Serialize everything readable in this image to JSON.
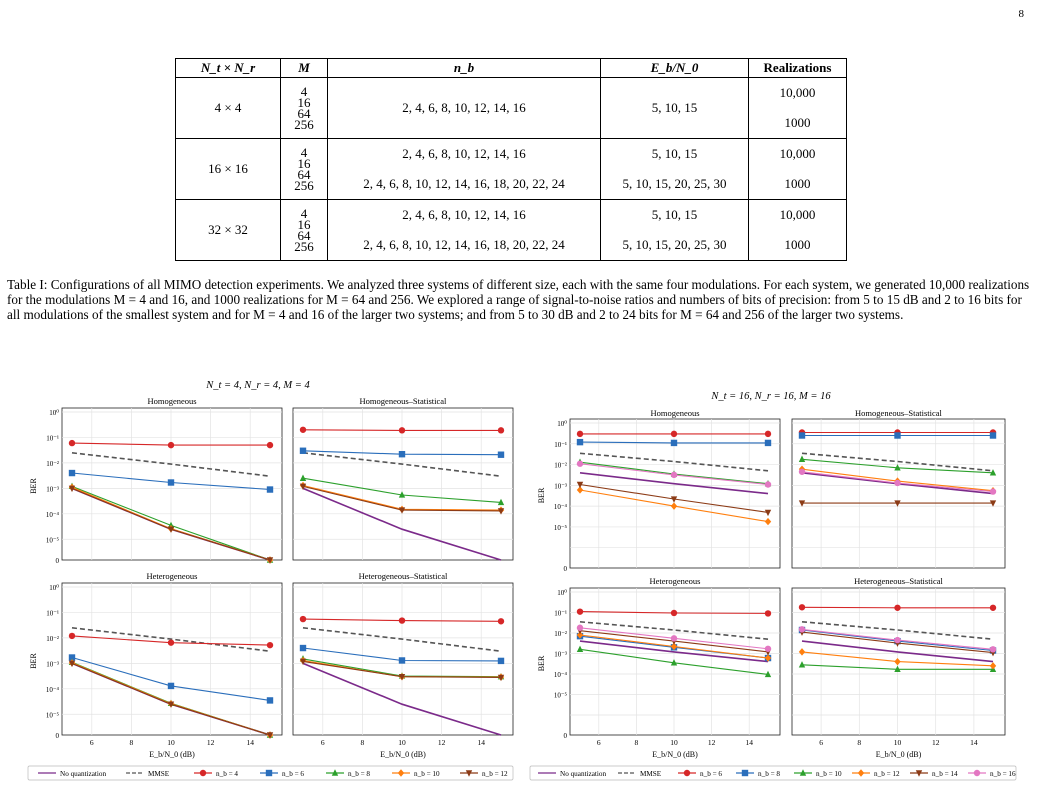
{
  "page_number": "8",
  "table": {
    "headers": [
      "N_t × N_r",
      "M",
      "n_b",
      "E_b/N_0",
      "Realizations"
    ],
    "rows": [
      {
        "size": "4 × 4",
        "m": [
          "4",
          "16",
          "64",
          "256"
        ],
        "nb": [
          "2, 4, 6, 8, 10, 12, 14, 16"
        ],
        "snr": [
          "5, 10, 15"
        ],
        "real": [
          "10,000",
          "1000"
        ]
      },
      {
        "size": "16 × 16",
        "m": [
          "4",
          "16",
          "64",
          "256"
        ],
        "nb": [
          "2, 4, 6, 8, 10, 12, 14, 16",
          "2, 4, 6, 8, 10, 12, 14, 16, 18, 20, 22, 24"
        ],
        "snr": [
          "5, 10, 15",
          "5, 10, 15, 20, 25, 30"
        ],
        "real": [
          "10,000",
          "1000"
        ]
      },
      {
        "size": "32 × 32",
        "m": [
          "4",
          "16",
          "64",
          "256"
        ],
        "nb": [
          "2, 4, 6, 8, 10, 12, 14, 16",
          "2, 4, 6, 8, 10, 12, 14, 16, 18, 20, 22, 24"
        ],
        "snr": [
          "5, 10, 15",
          "5, 10, 15, 20, 25, 30"
        ],
        "real": [
          "10,000",
          "1000"
        ]
      }
    ]
  },
  "caption": "Table I: Configurations of all MIMO detection experiments. We analyzed three systems of different size, each with the same four modulations. For each system, we generated 10,000 realizations for the modulations M = 4 and 16, and 1000 realizations for M = 64 and 256. We explored a range of signal-to-noise ratios and numbers of bits of precision: from 5 to 15 dB and 2 to 16 bits for all modulations of the smallest system and for M = 4 and 16 of the larger two systems; and from 5 to 30 dB and 2 to 24 bits for M = 64 and 256 of the larger two systems.",
  "chart_data": [
    {
      "type": "line",
      "title": "N_t = 4, N_r = 4, M = 4",
      "ylabel": "BER",
      "xlabel": "E_b/N_0 (dB)",
      "yscale": "log-with-zero",
      "ylim_exp": [
        -5,
        0
      ],
      "ytick_labels": [
        "0",
        "10⁻⁵",
        "10⁻⁴",
        "10⁻³",
        "10⁻²",
        "10⁻¹",
        "10⁰"
      ],
      "xticks": [
        6,
        8,
        10,
        12,
        14
      ],
      "x": [
        5,
        10,
        15
      ],
      "legend": [
        "No quantization",
        "MMSE",
        "n_b = 4",
        "n_b = 6",
        "n_b = 8",
        "n_b = 10",
        "n_b = 12"
      ],
      "panels": [
        {
          "title": "Homogeneous",
          "series": [
            {
              "name": "No quantization",
              "color": "#7b2a8a",
              "style": "solid",
              "marker": "none",
              "values": [
                0.001,
                2.5e-05,
                0
              ]
            },
            {
              "name": "MMSE",
              "color": "#555555",
              "style": "dashed",
              "marker": "none",
              "values": [
                0.025,
                0.009,
                0.003
              ]
            },
            {
              "name": "n_b = 4",
              "color": "#d62728",
              "marker": "circle",
              "values": [
                0.06,
                0.05,
                0.05
              ]
            },
            {
              "name": "n_b = 6",
              "color": "#2a6ebb",
              "marker": "square",
              "values": [
                0.004,
                0.0017,
                0.0009
              ]
            },
            {
              "name": "n_b = 8",
              "color": "#2ca02c",
              "marker": "triangle-up",
              "values": [
                0.0012,
                3.5e-05,
                0
              ]
            },
            {
              "name": "n_b = 10",
              "color": "#ff7f0e",
              "marker": "diamond",
              "values": [
                0.0011,
                2.6e-05,
                0
              ]
            },
            {
              "name": "n_b = 12",
              "color": "#8c3b16",
              "marker": "triangle-down",
              "values": [
                0.001,
                2.5e-05,
                0
              ]
            }
          ]
        },
        {
          "title": "Homogeneous–Statistical",
          "series": [
            {
              "name": "No quantization",
              "color": "#7b2a8a",
              "style": "solid",
              "marker": "none",
              "values": [
                0.001,
                2.5e-05,
                0
              ]
            },
            {
              "name": "MMSE",
              "color": "#555555",
              "style": "dashed",
              "marker": "none",
              "values": [
                0.025,
                0.009,
                0.003
              ]
            },
            {
              "name": "n_b = 4",
              "color": "#d62728",
              "marker": "circle",
              "values": [
                0.2,
                0.19,
                0.19
              ]
            },
            {
              "name": "n_b = 6",
              "color": "#2a6ebb",
              "marker": "square",
              "values": [
                0.03,
                0.022,
                0.021
              ]
            },
            {
              "name": "n_b = 8",
              "color": "#2ca02c",
              "marker": "triangle-up",
              "values": [
                0.0025,
                0.00055,
                0.00028
              ]
            },
            {
              "name": "n_b = 10",
              "color": "#ff7f0e",
              "marker": "diamond",
              "values": [
                0.0013,
                0.00015,
                0.00014
              ]
            },
            {
              "name": "n_b = 12",
              "color": "#8c3b16",
              "marker": "triangle-down",
              "values": [
                0.0012,
                0.00014,
                0.00013
              ]
            }
          ]
        },
        {
          "title": "Heterogeneous",
          "series": [
            {
              "name": "No quantization",
              "color": "#7b2a8a",
              "style": "solid",
              "marker": "none",
              "values": [
                0.001,
                2.5e-05,
                0
              ]
            },
            {
              "name": "MMSE",
              "color": "#555555",
              "style": "dashed",
              "marker": "none",
              "values": [
                0.025,
                0.009,
                0.003
              ]
            },
            {
              "name": "n_b = 4",
              "color": "#d62728",
              "marker": "circle",
              "values": [
                0.012,
                0.0065,
                0.0052
              ]
            },
            {
              "name": "n_b = 6",
              "color": "#2a6ebb",
              "marker": "square",
              "values": [
                0.0017,
                0.00013,
                3.5e-05
              ]
            },
            {
              "name": "n_b = 8",
              "color": "#2ca02c",
              "marker": "triangle-up",
              "values": [
                0.0011,
                2.7e-05,
                0
              ]
            },
            {
              "name": "n_b = 10",
              "color": "#ff7f0e",
              "marker": "diamond",
              "values": [
                0.00105,
                2.6e-05,
                0
              ]
            },
            {
              "name": "n_b = 12",
              "color": "#8c3b16",
              "marker": "triangle-down",
              "values": [
                0.001,
                2.5e-05,
                0
              ]
            }
          ]
        },
        {
          "title": "Heterogeneous–Statistical",
          "series": [
            {
              "name": "No quantization",
              "color": "#7b2a8a",
              "style": "solid",
              "marker": "none",
              "values": [
                0.001,
                2.5e-05,
                0
              ]
            },
            {
              "name": "MMSE",
              "color": "#555555",
              "style": "dashed",
              "marker": "none",
              "values": [
                0.025,
                0.009,
                0.003
              ]
            },
            {
              "name": "n_b = 4",
              "color": "#d62728",
              "marker": "circle",
              "values": [
                0.055,
                0.048,
                0.045
              ]
            },
            {
              "name": "n_b = 6",
              "color": "#2a6ebb",
              "marker": "square",
              "values": [
                0.004,
                0.0013,
                0.00125
              ]
            },
            {
              "name": "n_b = 8",
              "color": "#2ca02c",
              "marker": "triangle-up",
              "values": [
                0.0015,
                0.00032,
                0.0003
              ]
            },
            {
              "name": "n_b = 10",
              "color": "#ff7f0e",
              "marker": "diamond",
              "values": [
                0.0013,
                0.0003,
                0.00029
              ]
            },
            {
              "name": "n_b = 12",
              "color": "#8c3b16",
              "marker": "triangle-down",
              "values": [
                0.0012,
                0.0003,
                0.00028
              ]
            }
          ]
        }
      ]
    },
    {
      "type": "line",
      "title": "N_t = 16, N_r = 16, M = 16",
      "ylabel": "BER",
      "xlabel": "E_b/N_0 (dB)",
      "yscale": "log-with-zero",
      "ylim_exp": [
        -6,
        0
      ],
      "ytick_labels": [
        "0",
        "10⁻⁵",
        "10⁻⁴",
        "10⁻³",
        "10⁻²",
        "10⁻¹",
        "10⁰"
      ],
      "xticks": [
        6,
        8,
        10,
        12,
        14
      ],
      "x": [
        5,
        10,
        15
      ],
      "legend": [
        "No quantization",
        "MMSE",
        "n_b = 6",
        "n_b = 8",
        "n_b = 10",
        "n_b = 12",
        "n_b = 14",
        "n_b = 16"
      ],
      "panels": [
        {
          "title": "Homogeneous",
          "series": [
            {
              "name": "No quantization",
              "color": "#7b2a8a",
              "style": "solid",
              "marker": "none",
              "values": [
                0.004,
                0.0012,
                0.0004
              ]
            },
            {
              "name": "MMSE",
              "color": "#555555",
              "style": "dashed",
              "marker": "none",
              "values": [
                0.035,
                0.014,
                0.005
              ]
            },
            {
              "name": "n_b = 6",
              "color": "#d62728",
              "marker": "circle",
              "values": [
                0.3,
                0.3,
                0.3
              ]
            },
            {
              "name": "n_b = 8",
              "color": "#2a6ebb",
              "marker": "square",
              "values": [
                0.12,
                0.11,
                0.11
              ]
            },
            {
              "name": "n_b = 10",
              "color": "#2ca02c",
              "marker": "triangle-up",
              "values": [
                0.013,
                0.0035,
                0.0012
              ]
            },
            {
              "name": "n_b = 12",
              "color": "#ff7f0e",
              "marker": "diamond",
              "values": [
                0.0006,
                0.0001,
                1.8e-05
              ]
            },
            {
              "name": "n_b = 14",
              "color": "#8c3b16",
              "marker": "triangle-down",
              "values": [
                0.0011,
                0.00022,
                5e-05
              ]
            },
            {
              "name": "n_b = 16",
              "color": "#e377c2",
              "marker": "circle",
              "values": [
                0.011,
                0.0032,
                0.0011
              ]
            }
          ]
        },
        {
          "title": "Homogeneous–Statistical",
          "series": [
            {
              "name": "No quantization",
              "color": "#7b2a8a",
              "style": "solid",
              "marker": "none",
              "values": [
                0.004,
                0.0012,
                0.0004
              ]
            },
            {
              "name": "MMSE",
              "color": "#555555",
              "style": "dashed",
              "marker": "none",
              "values": [
                0.035,
                0.014,
                0.005
              ]
            },
            {
              "name": "n_b = 6",
              "color": "#d62728",
              "marker": "circle",
              "values": [
                0.35,
                0.35,
                0.35
              ]
            },
            {
              "name": "n_b = 8",
              "color": "#2a6ebb",
              "marker": "square",
              "values": [
                0.25,
                0.25,
                0.25
              ]
            },
            {
              "name": "n_b = 10",
              "color": "#2ca02c",
              "marker": "triangle-up",
              "values": [
                0.018,
                0.007,
                0.004
              ]
            },
            {
              "name": "n_b = 12",
              "color": "#ff7f0e",
              "marker": "diamond",
              "values": [
                0.006,
                0.0016,
                0.00055
              ]
            },
            {
              "name": "n_b = 14",
              "color": "#8c3b16",
              "marker": "triangle-down",
              "values": [
                0.00014,
                0.00014,
                0.00014
              ]
            },
            {
              "name": "n_b = 16",
              "color": "#e377c2",
              "marker": "circle",
              "values": [
                0.0045,
                0.0013,
                0.0005
              ]
            }
          ]
        },
        {
          "title": "Heterogeneous",
          "series": [
            {
              "name": "No quantization",
              "color": "#7b2a8a",
              "style": "solid",
              "marker": "none",
              "values": [
                0.004,
                0.0012,
                0.0004
              ]
            },
            {
              "name": "MMSE",
              "color": "#555555",
              "style": "dashed",
              "marker": "none",
              "values": [
                0.035,
                0.014,
                0.005
              ]
            },
            {
              "name": "n_b = 6",
              "color": "#d62728",
              "marker": "circle",
              "values": [
                0.11,
                0.095,
                0.09
              ]
            },
            {
              "name": "n_b = 8",
              "color": "#2a6ebb",
              "marker": "square",
              "values": [
                0.007,
                0.002,
                0.0006
              ]
            },
            {
              "name": "n_b = 10",
              "color": "#2ca02c",
              "marker": "triangle-up",
              "values": [
                0.0016,
                0.00035,
                9.5e-05
              ]
            },
            {
              "name": "n_b = 12",
              "color": "#ff7f0e",
              "marker": "diamond",
              "values": [
                0.008,
                0.0022,
                0.0006
              ]
            },
            {
              "name": "n_b = 14",
              "color": "#8c3b16",
              "marker": "triangle-down",
              "values": [
                0.013,
                0.004,
                0.0012
              ]
            },
            {
              "name": "n_b = 16",
              "color": "#e377c2",
              "marker": "circle",
              "values": [
                0.018,
                0.0055,
                0.0017
              ]
            }
          ]
        },
        {
          "title": "Heterogeneous–Statistical",
          "series": [
            {
              "name": "No quantization",
              "color": "#7b2a8a",
              "style": "solid",
              "marker": "none",
              "values": [
                0.004,
                0.0012,
                0.0004
              ]
            },
            {
              "name": "MMSE",
              "color": "#555555",
              "style": "dashed",
              "marker": "none",
              "values": [
                0.035,
                0.014,
                0.005
              ]
            },
            {
              "name": "n_b = 6",
              "color": "#d62728",
              "marker": "circle",
              "values": [
                0.18,
                0.17,
                0.17
              ]
            },
            {
              "name": "n_b = 8",
              "color": "#2a6ebb",
              "marker": "square",
              "values": [
                0.014,
                0.004,
                0.0014
              ]
            },
            {
              "name": "n_b = 10",
              "color": "#2ca02c",
              "marker": "triangle-up",
              "values": [
                0.00028,
                0.00017,
                0.00017
              ]
            },
            {
              "name": "n_b = 12",
              "color": "#ff7f0e",
              "marker": "diamond",
              "values": [
                0.0012,
                0.0004,
                0.00025
              ]
            },
            {
              "name": "n_b = 14",
              "color": "#8c3b16",
              "marker": "triangle-down",
              "values": [
                0.011,
                0.0032,
                0.0011
              ]
            },
            {
              "name": "n_b = 16",
              "color": "#e377c2",
              "marker": "circle",
              "values": [
                0.015,
                0.0045,
                0.0016
              ]
            }
          ]
        }
      ]
    }
  ]
}
